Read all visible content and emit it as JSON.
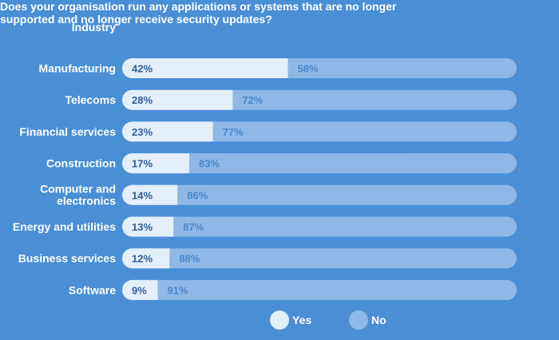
{
  "header": {
    "category_label": "Industry",
    "question": "Does your organisation run any applications or systems that are no longer supported and no longer receive security updates?"
  },
  "colors": {
    "background": "#4a8fd6",
    "yes": "#e3effb",
    "no": "#8fb8e6",
    "yes_text": "#2f5f98",
    "no_text": "#4a86c9"
  },
  "legend": {
    "yes_label": "Yes",
    "no_label": "No",
    "placement": "bottom-center"
  },
  "chart_data": {
    "type": "bar",
    "orientation": "horizontal",
    "stacked": true,
    "categories": [
      "Manufacturing",
      "Telecoms",
      "Financial services",
      "Construction",
      "Computer and electronics",
      "Energy and utilities",
      "Business services",
      "Software"
    ],
    "series": [
      {
        "name": "Yes",
        "values": [
          42,
          28,
          23,
          17,
          14,
          13,
          12,
          9
        ],
        "labels": [
          "42%",
          "28%",
          "23%",
          "17%",
          "14%",
          "13%",
          "12%",
          "9%"
        ]
      },
      {
        "name": "No",
        "values": [
          58,
          72,
          77,
          83,
          86,
          87,
          88,
          91
        ],
        "labels": [
          "58%",
          "72%",
          "77%",
          "83%",
          "86%",
          "87%",
          "88%",
          "91%"
        ]
      }
    ],
    "xlim": [
      0,
      100
    ],
    "grid": false
  }
}
